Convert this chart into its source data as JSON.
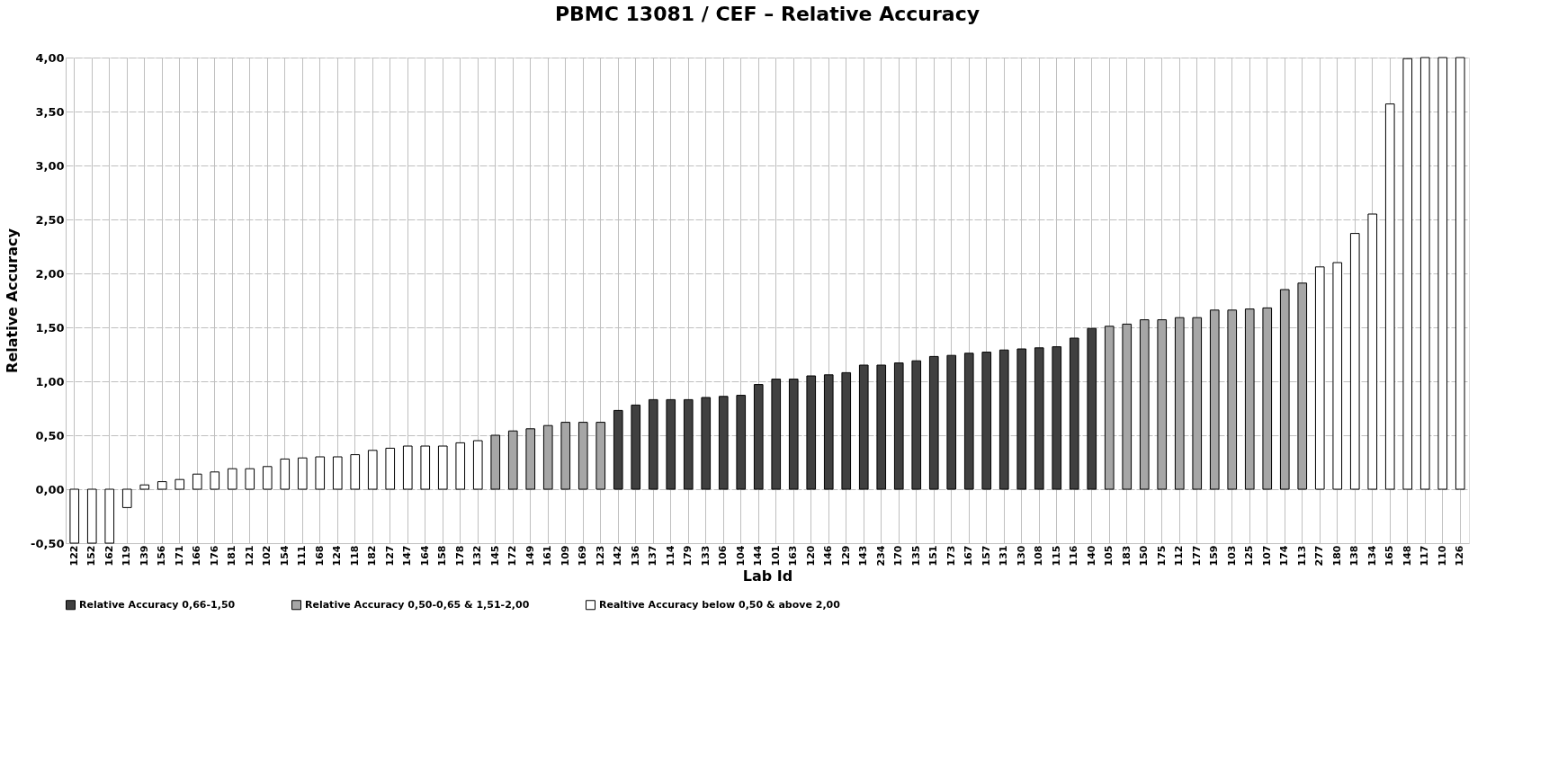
{
  "chart_data": {
    "type": "bar",
    "title": "PBMC 13081 / CEF – Relative Accuracy",
    "xlabel": "Lab Id",
    "ylabel": "Relative Accuracy",
    "categories": [
      "122",
      "152",
      "162",
      "119",
      "139",
      "156",
      "171",
      "166",
      "176",
      "181",
      "121",
      "102",
      "154",
      "111",
      "168",
      "124",
      "118",
      "182",
      "127",
      "147",
      "164",
      "158",
      "178",
      "132",
      "145",
      "172",
      "149",
      "161",
      "109",
      "169",
      "123",
      "142",
      "136",
      "137",
      "114",
      "179",
      "133",
      "106",
      "104",
      "144",
      "101",
      "163",
      "120",
      "146",
      "129",
      "143",
      "234",
      "170",
      "135",
      "151",
      "173",
      "167",
      "157",
      "131",
      "130",
      "108",
      "115",
      "116",
      "140",
      "105",
      "183",
      "150",
      "175",
      "112",
      "177",
      "159",
      "103",
      "125",
      "107",
      "174",
      "113",
      "277",
      "180",
      "138",
      "134",
      "165",
      "148",
      "117",
      "110",
      "126"
    ],
    "series": [
      {
        "name": "Relative Accuracy 0,66-1,50",
        "color": "#404040",
        "values": [
          null,
          null,
          null,
          null,
          null,
          null,
          null,
          null,
          null,
          null,
          null,
          null,
          null,
          null,
          null,
          null,
          null,
          null,
          null,
          null,
          null,
          null,
          null,
          null,
          null,
          null,
          null,
          null,
          null,
          null,
          null,
          0.73,
          0.78,
          0.83,
          0.83,
          0.83,
          0.85,
          0.86,
          0.87,
          0.97,
          1.02,
          1.02,
          1.05,
          1.06,
          1.08,
          1.15,
          1.15,
          1.17,
          1.19,
          1.23,
          1.24,
          1.26,
          1.27,
          1.29,
          1.3,
          1.31,
          1.32,
          1.4,
          1.49,
          null,
          null,
          null,
          null,
          null,
          null,
          null,
          null,
          null,
          null,
          null,
          null,
          null,
          null,
          null,
          null,
          null,
          null,
          null,
          null,
          null
        ]
      },
      {
        "name": "Relative Accuracy 0,50-0,65 & 1,51-2,00",
        "color": "#a6a6a6",
        "values": [
          null,
          null,
          null,
          null,
          null,
          null,
          null,
          null,
          null,
          null,
          null,
          null,
          null,
          null,
          null,
          null,
          null,
          null,
          null,
          null,
          null,
          null,
          null,
          null,
          0.5,
          0.54,
          0.56,
          0.59,
          0.62,
          0.62,
          0.62,
          null,
          null,
          null,
          null,
          null,
          null,
          null,
          null,
          null,
          null,
          null,
          null,
          null,
          null,
          null,
          null,
          null,
          null,
          null,
          null,
          null,
          null,
          null,
          null,
          null,
          null,
          null,
          null,
          1.51,
          1.53,
          1.57,
          1.57,
          1.59,
          1.59,
          1.66,
          1.66,
          1.67,
          1.68,
          1.85,
          1.91,
          null,
          null,
          null,
          null,
          null,
          null,
          null,
          null,
          null
        ]
      },
      {
        "name": "Realtive Accuracy below 0,50 & above 2,00",
        "color": "#ffffff",
        "values": [
          -0.5,
          -0.5,
          -0.5,
          -0.17,
          0.04,
          0.07,
          0.09,
          0.14,
          0.16,
          0.19,
          0.19,
          0.21,
          0.28,
          0.29,
          0.3,
          0.3,
          0.32,
          0.36,
          0.38,
          0.4,
          0.4,
          0.4,
          0.43,
          0.45,
          null,
          null,
          null,
          null,
          null,
          null,
          null,
          null,
          null,
          null,
          null,
          null,
          null,
          null,
          null,
          null,
          null,
          null,
          null,
          null,
          null,
          null,
          null,
          null,
          null,
          null,
          null,
          null,
          null,
          null,
          null,
          null,
          null,
          null,
          null,
          null,
          null,
          null,
          null,
          null,
          null,
          null,
          null,
          null,
          null,
          null,
          null,
          2.06,
          2.1,
          2.37,
          2.55,
          3.57,
          3.99,
          4.0,
          4.0,
          4.0
        ]
      }
    ],
    "ylim": [
      -0.5,
      4.0
    ],
    "yticks": [
      {
        "value": -0.5,
        "label": "-0,50"
      },
      {
        "value": 0,
        "label": "0,00"
      },
      {
        "value": 0.5,
        "label": "0,50"
      },
      {
        "value": 1.0,
        "label": "1,00"
      },
      {
        "value": 1.5,
        "label": "1,50"
      },
      {
        "value": 2.0,
        "label": "2,00"
      },
      {
        "value": 2.5,
        "label": "2,50"
      },
      {
        "value": 3.0,
        "label": "3,00"
      },
      {
        "value": 3.5,
        "label": "3,50"
      },
      {
        "value": 4.0,
        "label": "4,00"
      }
    ],
    "grid": true,
    "legend": "bottom"
  }
}
